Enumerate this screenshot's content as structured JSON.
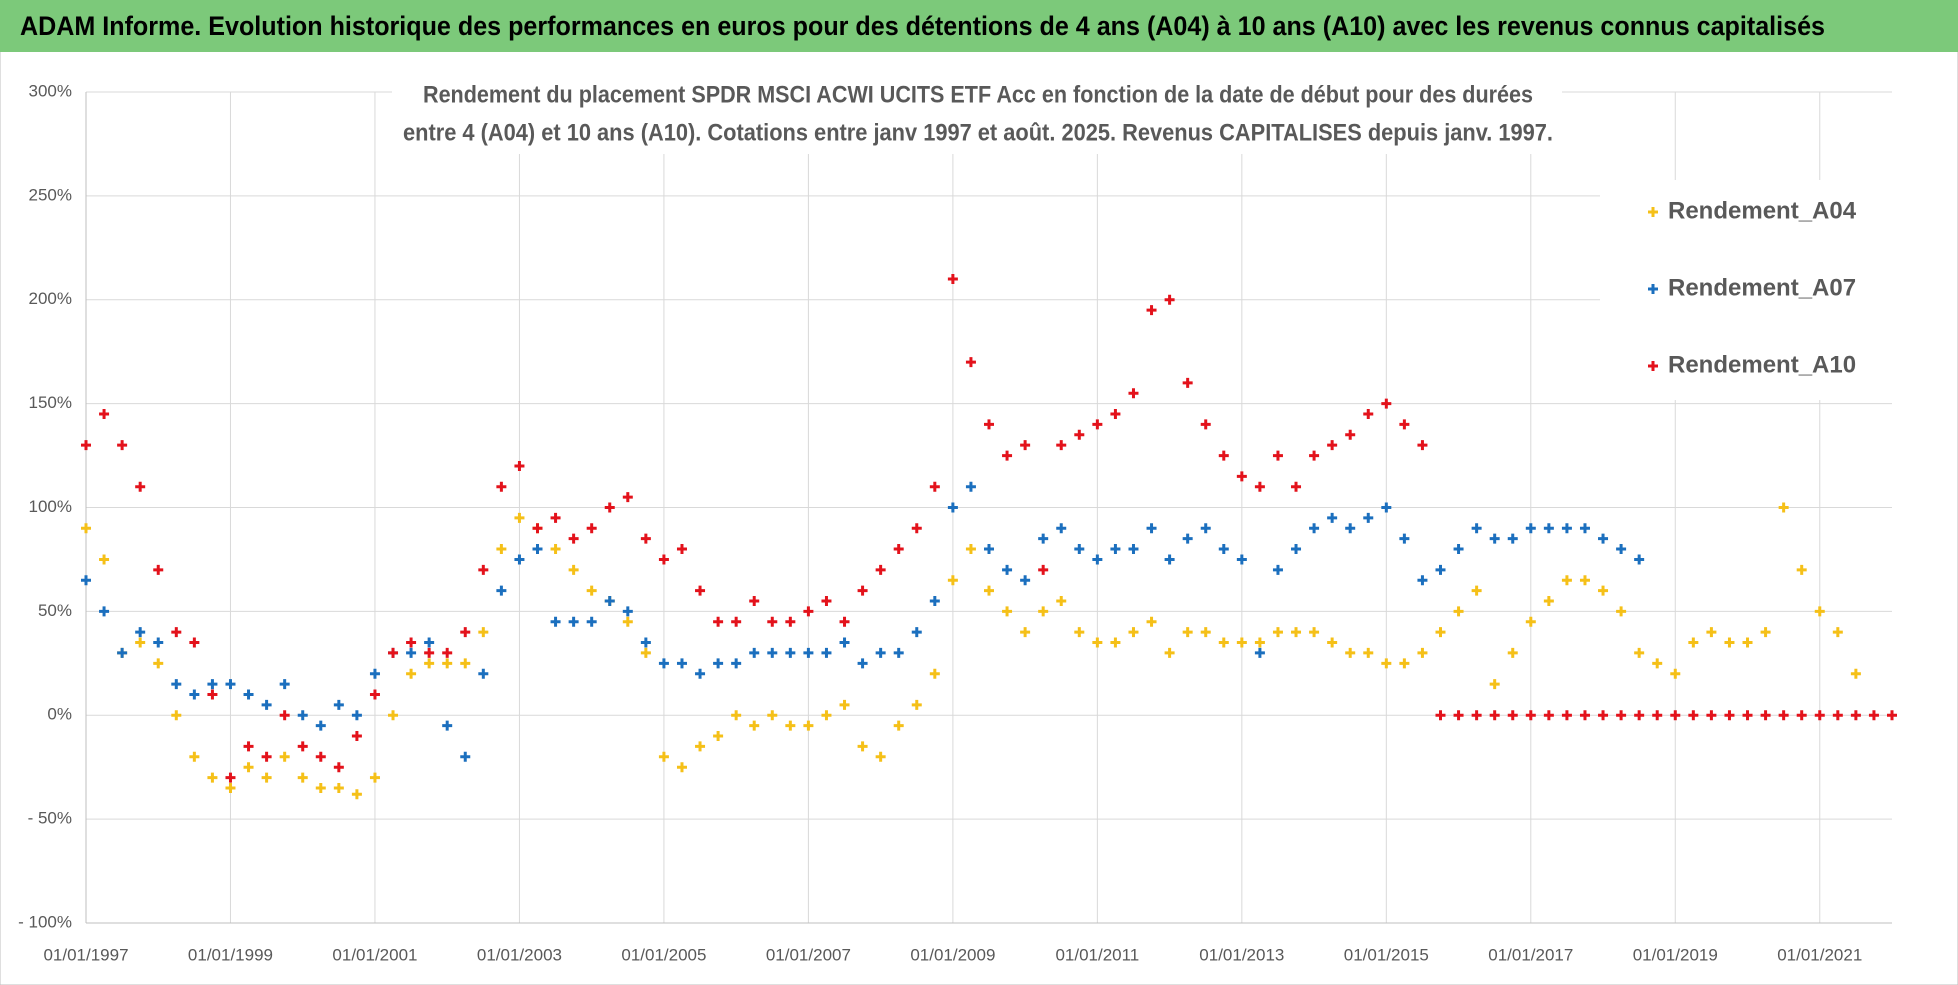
{
  "header": "ADAM Informe. Evolution historique des performances en euros pour des détentions de 4 ans (A04) à 10 ans (A10) avec les revenus connus capitalisés",
  "chart_data": {
    "type": "scatter",
    "title": [
      "Rendement du placement SPDR MSCI ACWI UCITS ETF Acc en fonction de la date de début pour des durées",
      "entre 4 (A04) et 10 ans (A10).  Cotations entre janv 1997 et août. 2025. Revenus CAPITALISES depuis janv. 1997."
    ],
    "xlim": [
      "1997-01",
      "2022-01"
    ],
    "xticks": [
      {
        "value": "1997-01",
        "label": "01/01/1997"
      },
      {
        "value": "1999-01",
        "label": "01/01/1999"
      },
      {
        "value": "2001-01",
        "label": "01/01/2001"
      },
      {
        "value": "2003-01",
        "label": "01/01/2003"
      },
      {
        "value": "2005-01",
        "label": "01/01/2005"
      },
      {
        "value": "2007-01",
        "label": "01/01/2007"
      },
      {
        "value": "2009-01",
        "label": "01/01/2009"
      },
      {
        "value": "2011-01",
        "label": "01/01/2011"
      },
      {
        "value": "2013-01",
        "label": "01/01/2013"
      },
      {
        "value": "2015-01",
        "label": "01/01/2015"
      },
      {
        "value": "2017-01",
        "label": "01/01/2017"
      },
      {
        "value": "2019-01",
        "label": "01/01/2019"
      },
      {
        "value": "2021-01",
        "label": "01/01/2021"
      }
    ],
    "ylim": [
      -100,
      300
    ],
    "yticks": [
      {
        "value": -100,
        "label": "- 100%"
      },
      {
        "value": -50,
        "label": "- 50%"
      },
      {
        "value": 0,
        "label": "0%"
      },
      {
        "value": 50,
        "label": "50%"
      },
      {
        "value": 100,
        "label": "100%"
      },
      {
        "value": 150,
        "label": "150%"
      },
      {
        "value": 200,
        "label": "200%"
      },
      {
        "value": 250,
        "label": "250%"
      },
      {
        "value": 300,
        "label": "300%"
      }
    ],
    "grid": true,
    "legend": "upper right",
    "series": [
      {
        "name": "Rendement_A04",
        "color": "#f5c018",
        "x": [
          "1997-01",
          "1997-04",
          "1997-07",
          "1997-10",
          "1998-01",
          "1998-04",
          "1998-07",
          "1998-10",
          "1999-01",
          "1999-04",
          "1999-07",
          "1999-10",
          "2000-01",
          "2000-04",
          "2000-07",
          "2000-10",
          "2001-01",
          "2001-04",
          "2001-07",
          "2001-10",
          "2002-01",
          "2002-04",
          "2002-07",
          "2002-10",
          "2003-01",
          "2003-04",
          "2003-07",
          "2003-10",
          "2004-01",
          "2004-04",
          "2004-07",
          "2004-10",
          "2005-01",
          "2005-04",
          "2005-07",
          "2005-10",
          "2006-01",
          "2006-04",
          "2006-07",
          "2006-10",
          "2007-01",
          "2007-04",
          "2007-07",
          "2007-10",
          "2008-01",
          "2008-04",
          "2008-07",
          "2008-10",
          "2009-01",
          "2009-04",
          "2009-07",
          "2009-10",
          "2010-01",
          "2010-04",
          "2010-07",
          "2010-10",
          "2011-01",
          "2011-04",
          "2011-07",
          "2011-10",
          "2012-01",
          "2012-04",
          "2012-07",
          "2012-10",
          "2013-01",
          "2013-04",
          "2013-07",
          "2013-10",
          "2014-01",
          "2014-04",
          "2014-07",
          "2014-10",
          "2015-01",
          "2015-04",
          "2015-07",
          "2015-10",
          "2016-01",
          "2016-04",
          "2016-07",
          "2016-10",
          "2017-01",
          "2017-04",
          "2017-07",
          "2017-10",
          "2018-01",
          "2018-04",
          "2018-07",
          "2018-10",
          "2019-01",
          "2019-04",
          "2019-07",
          "2019-10",
          "2020-01",
          "2020-04",
          "2020-07",
          "2020-10",
          "2021-01",
          "2021-04",
          "2021-07"
        ],
        "values": [
          90,
          75,
          30,
          35,
          25,
          0,
          -20,
          -30,
          -35,
          -25,
          -30,
          -20,
          -30,
          -35,
          -35,
          -38,
          -30,
          0,
          20,
          25,
          25,
          25,
          40,
          80,
          95,
          90,
          80,
          70,
          60,
          55,
          45,
          30,
          -20,
          -25,
          -15,
          -10,
          0,
          -5,
          0,
          -5,
          -5,
          0,
          5,
          -15,
          -20,
          -5,
          5,
          20,
          65,
          80,
          60,
          50,
          40,
          50,
          55,
          40,
          35,
          35,
          40,
          45,
          30,
          40,
          40,
          35,
          35,
          35,
          40,
          40,
          40,
          35,
          30,
          30,
          25,
          25,
          30,
          40,
          50,
          60,
          15,
          30,
          45,
          55,
          65,
          65,
          60,
          50,
          30,
          25,
          20,
          35,
          40,
          35,
          35,
          40,
          100,
          70,
          50,
          40,
          20
        ]
      },
      {
        "name": "Rendement_A07",
        "color": "#1b6fbe",
        "x": [
          "1997-01",
          "1997-04",
          "1997-07",
          "1997-10",
          "1998-01",
          "1998-04",
          "1998-07",
          "1998-10",
          "1999-01",
          "1999-04",
          "1999-07",
          "1999-10",
          "2000-01",
          "2000-04",
          "2000-07",
          "2000-10",
          "2001-01",
          "2001-04",
          "2001-07",
          "2001-10",
          "2002-01",
          "2002-04",
          "2002-07",
          "2002-10",
          "2003-01",
          "2003-04",
          "2003-07",
          "2003-10",
          "2004-01",
          "2004-04",
          "2004-07",
          "2004-10",
          "2005-01",
          "2005-04",
          "2005-07",
          "2005-10",
          "2006-01",
          "2006-04",
          "2006-07",
          "2006-10",
          "2007-01",
          "2007-04",
          "2007-07",
          "2007-10",
          "2008-01",
          "2008-04",
          "2008-07",
          "2008-10",
          "2009-01",
          "2009-04",
          "2009-07",
          "2009-10",
          "2010-01",
          "2010-04",
          "2010-07",
          "2010-10",
          "2011-01",
          "2011-04",
          "2011-07",
          "2011-10",
          "2012-01",
          "2012-04",
          "2012-07",
          "2012-10",
          "2013-01",
          "2013-04",
          "2013-07",
          "2013-10",
          "2014-01",
          "2014-04",
          "2014-07",
          "2014-10",
          "2015-01",
          "2015-04",
          "2015-07",
          "2015-10",
          "2016-01",
          "2016-04",
          "2016-07",
          "2016-10",
          "2017-01",
          "2017-04",
          "2017-07",
          "2017-10",
          "2018-01",
          "2018-04",
          "2018-07"
        ],
        "values": [
          65,
          50,
          30,
          40,
          35,
          15,
          10,
          15,
          15,
          10,
          5,
          15,
          0,
          -5,
          5,
          0,
          20,
          30,
          30,
          35,
          -5,
          -20,
          20,
          60,
          75,
          80,
          45,
          45,
          45,
          55,
          50,
          35,
          25,
          25,
          20,
          25,
          25,
          30,
          30,
          30,
          30,
          30,
          35,
          25,
          30,
          30,
          40,
          55,
          100,
          110,
          80,
          70,
          65,
          85,
          90,
          80,
          75,
          80,
          80,
          90,
          75,
          85,
          90,
          80,
          75,
          30,
          70,
          80,
          90,
          95,
          90,
          95,
          100,
          85,
          65,
          70,
          80,
          90,
          85,
          85,
          90,
          90,
          90,
          90,
          85,
          80,
          75
        ]
      },
      {
        "name": "Rendement_A10",
        "color": "#e3121b",
        "x": [
          "1997-01",
          "1997-04",
          "1997-07",
          "1997-10",
          "1998-01",
          "1998-04",
          "1998-07",
          "1998-10",
          "1999-01",
          "1999-04",
          "1999-07",
          "1999-10",
          "2000-01",
          "2000-04",
          "2000-07",
          "2000-10",
          "2001-01",
          "2001-04",
          "2001-07",
          "2001-10",
          "2002-01",
          "2002-04",
          "2002-07",
          "2002-10",
          "2003-01",
          "2003-04",
          "2003-07",
          "2003-10",
          "2004-01",
          "2004-04",
          "2004-07",
          "2004-10",
          "2005-01",
          "2005-04",
          "2005-07",
          "2005-10",
          "2006-01",
          "2006-04",
          "2006-07",
          "2006-10",
          "2007-01",
          "2007-04",
          "2007-07",
          "2007-10",
          "2008-01",
          "2008-04",
          "2008-07",
          "2008-10",
          "2009-01",
          "2009-04",
          "2009-07",
          "2009-10",
          "2010-01",
          "2010-04",
          "2010-07",
          "2010-10",
          "2011-01",
          "2011-04",
          "2011-07",
          "2011-10",
          "2012-01",
          "2012-04",
          "2012-07",
          "2012-10",
          "2013-01",
          "2013-04",
          "2013-07",
          "2013-10",
          "2014-01",
          "2014-04",
          "2014-07",
          "2014-10",
          "2015-01",
          "2015-04",
          "2015-07",
          "2015-10",
          "2016-01",
          "2016-04",
          "2016-07",
          "2016-10",
          "2017-01",
          "2017-04",
          "2017-07",
          "2017-10",
          "2018-01",
          "2018-04",
          "2018-07",
          "2018-10",
          "2019-01",
          "2019-04",
          "2019-07",
          "2019-10",
          "2020-01",
          "2020-04",
          "2020-07",
          "2020-10",
          "2021-01",
          "2021-04",
          "2021-07",
          "2021-10",
          "2022-01"
        ],
        "values": [
          130,
          145,
          130,
          110,
          70,
          40,
          35,
          10,
          -30,
          -15,
          -20,
          0,
          -15,
          -20,
          -25,
          -10,
          10,
          30,
          35,
          30,
          30,
          40,
          70,
          110,
          120,
          90,
          95,
          85,
          90,
          100,
          105,
          85,
          75,
          80,
          60,
          45,
          45,
          55,
          45,
          45,
          50,
          55,
          45,
          60,
          70,
          80,
          90,
          110,
          210,
          170,
          140,
          125,
          130,
          70,
          130,
          135,
          140,
          145,
          155,
          195,
          200,
          160,
          140,
          125,
          115,
          110,
          125,
          110,
          125,
          130,
          135,
          145,
          150,
          140,
          130,
          0,
          0,
          0,
          0,
          0,
          0,
          0,
          0,
          0,
          0,
          0,
          0,
          0,
          0,
          0,
          0,
          0,
          0,
          0,
          0,
          0,
          0,
          0,
          0,
          0,
          0
        ]
      }
    ]
  }
}
